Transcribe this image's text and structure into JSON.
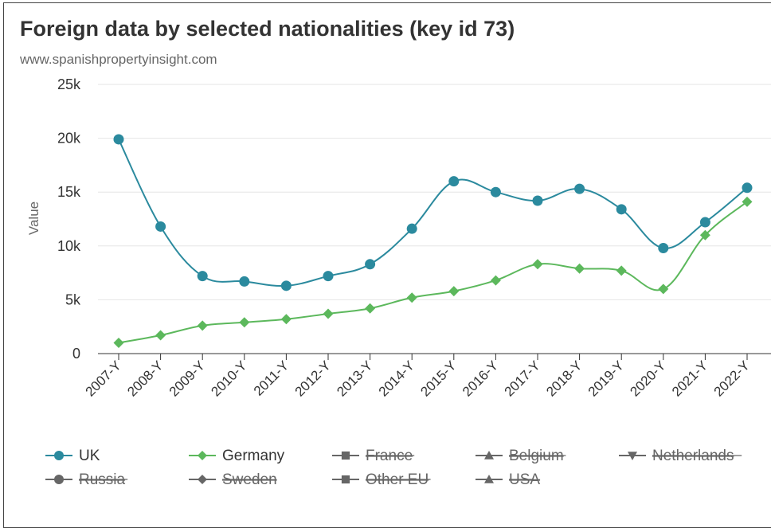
{
  "chart_data": {
    "type": "line",
    "title": "Foreign data by selected nationalities (key id 73)",
    "subtitle": "www.spanishpropertyinsight.com",
    "xlabel": "",
    "ylabel": "Value",
    "ylim": [
      0,
      25000
    ],
    "yticks": [
      {
        "value": 0,
        "label": "0"
      },
      {
        "value": 5000,
        "label": "5k"
      },
      {
        "value": 10000,
        "label": "10k"
      },
      {
        "value": 15000,
        "label": "15k"
      },
      {
        "value": 20000,
        "label": "20k"
      },
      {
        "value": 25000,
        "label": "25k"
      }
    ],
    "categories": [
      "2007-Y",
      "2008-Y",
      "2009-Y",
      "2010-Y",
      "2011-Y",
      "2012-Y",
      "2013-Y",
      "2014-Y",
      "2015-Y",
      "2016-Y",
      "2017-Y",
      "2018-Y",
      "2019-Y",
      "2020-Y",
      "2021-Y",
      "2022-Y"
    ],
    "grid": true,
    "legend_position": "bottom",
    "series": [
      {
        "name": "UK",
        "color": "#2b8a9e",
        "marker": "circle",
        "visible": true,
        "values": [
          19900,
          11800,
          7200,
          6700,
          6300,
          7200,
          8300,
          11600,
          16000,
          15000,
          14200,
          15300,
          13400,
          9800,
          12200,
          15400
        ]
      },
      {
        "name": "Germany",
        "color": "#5cb85c",
        "marker": "diamond",
        "visible": true,
        "values": [
          1000,
          1700,
          2600,
          2900,
          3200,
          3700,
          4200,
          5200,
          5800,
          6800,
          8300,
          7900,
          7700,
          6000,
          11000,
          14100
        ]
      }
    ],
    "hidden_series": [
      {
        "name": "France",
        "marker": "square"
      },
      {
        "name": "Belgium",
        "marker": "triangle"
      },
      {
        "name": "Netherlands",
        "marker": "triangle-down"
      },
      {
        "name": "Russia",
        "marker": "circle"
      },
      {
        "name": "Sweden",
        "marker": "diamond"
      },
      {
        "name": "Other EU",
        "marker": "square"
      },
      {
        "name": "USA",
        "marker": "triangle"
      }
    ],
    "colors": {
      "hidden": "#666666",
      "grid": "#e6e6e6",
      "axis": "#333333",
      "text": "#333333",
      "subtitle": "#666666"
    }
  }
}
